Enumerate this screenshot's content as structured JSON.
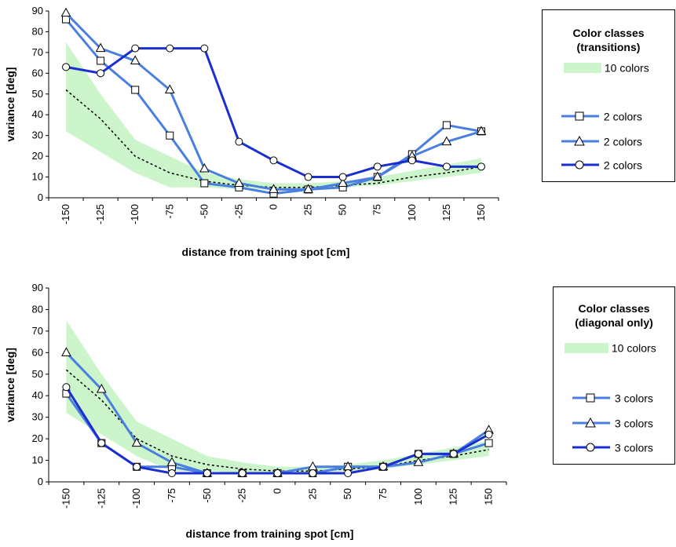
{
  "chart_data": [
    {
      "type": "line",
      "title": "",
      "xlabel": "distance from training spot [cm]",
      "ylabel": "variance [deg]",
      "ylim": [
        0,
        90
      ],
      "yticks": [
        0,
        10,
        20,
        30,
        40,
        50,
        60,
        70,
        80,
        90
      ],
      "categories": [
        "-150",
        "-125",
        "-100",
        "-75",
        "-50",
        "-25",
        "0",
        "25",
        "50",
        "75",
        "100",
        "125",
        "150"
      ],
      "band": {
        "name": "10 colors",
        "color": "#ccf5cc",
        "lower": [
          32,
          22,
          12,
          5,
          5,
          4,
          4,
          4,
          5,
          6,
          8,
          10,
          12
        ],
        "upper": [
          75,
          50,
          28,
          20,
          12,
          9,
          7,
          7,
          8,
          10,
          13,
          16,
          19
        ],
        "mean": [
          52,
          38,
          20,
          12,
          8,
          6,
          5,
          5,
          6,
          7,
          10,
          12,
          15
        ]
      },
      "series": [
        {
          "name": "2 colors",
          "marker": "square",
          "color": "#4a7fe0",
          "values": [
            86,
            66,
            52,
            30,
            7,
            5,
            2,
            4,
            5,
            10,
            21,
            35,
            32
          ]
        },
        {
          "name": "2 colors",
          "marker": "triangle",
          "color": "#4a7fe0",
          "values": [
            89,
            72,
            66,
            52,
            14,
            7,
            4,
            4,
            7,
            10,
            20,
            27,
            32
          ]
        },
        {
          "name": "2 colors",
          "marker": "circle",
          "color": "#1b2fd0",
          "values": [
            63,
            60,
            72,
            72,
            72,
            27,
            18,
            10,
            10,
            15,
            18,
            15,
            15
          ]
        }
      ],
      "legend": {
        "title_line1": "Color classes",
        "title_line2": "(transitions)",
        "band_label": "10 colors"
      }
    },
    {
      "type": "line",
      "title": "",
      "xlabel": "distance from training spot [cm]",
      "ylabel": "variance [deg]",
      "ylim": [
        0,
        90
      ],
      "yticks": [
        0,
        10,
        20,
        30,
        40,
        50,
        60,
        70,
        80,
        90
      ],
      "categories": [
        "-150",
        "-125",
        "-100",
        "-75",
        "-50",
        "-25",
        "0",
        "25",
        "50",
        "75",
        "100",
        "125",
        "150"
      ],
      "band": {
        "name": "10 colors",
        "color": "#ccf5cc",
        "lower": [
          32,
          22,
          12,
          5,
          5,
          4,
          4,
          4,
          5,
          6,
          8,
          10,
          12
        ],
        "upper": [
          75,
          50,
          28,
          20,
          12,
          9,
          7,
          7,
          8,
          10,
          13,
          16,
          19
        ],
        "mean": [
          52,
          38,
          20,
          12,
          8,
          6,
          5,
          5,
          6,
          7,
          10,
          12,
          15
        ]
      },
      "series": [
        {
          "name": "3 colors",
          "marker": "square",
          "color": "#4a7fe0",
          "values": [
            41,
            18,
            7,
            7,
            4,
            4,
            4,
            4,
            7,
            7,
            13,
            13,
            18
          ]
        },
        {
          "name": "3 colors",
          "marker": "triangle",
          "color": "#4a7fe0",
          "values": [
            60,
            43,
            18,
            9,
            4,
            4,
            4,
            7,
            7,
            7,
            9,
            13,
            24
          ]
        },
        {
          "name": "3 colors",
          "marker": "circle",
          "color": "#1b2fd0",
          "values": [
            44,
            18,
            7,
            4,
            4,
            4,
            4,
            4,
            4,
            7,
            13,
            13,
            22
          ]
        }
      ],
      "legend": {
        "title_line1": "Color classes",
        "title_line2": "(diagonal only)",
        "band_label": "10 colors"
      }
    }
  ]
}
